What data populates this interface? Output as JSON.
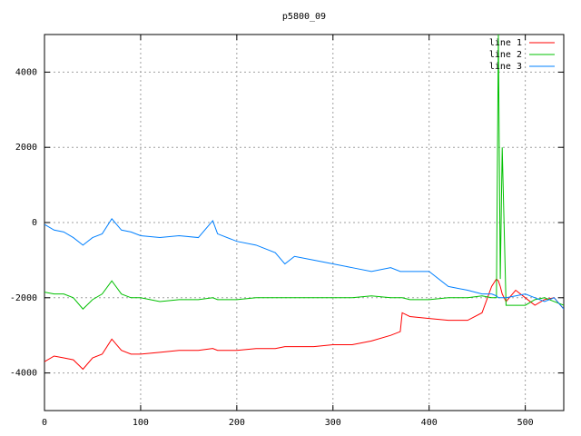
{
  "chart_data": {
    "type": "line",
    "title": "p5800_09",
    "x": [
      0,
      10,
      20,
      30,
      40,
      50,
      60,
      70,
      80,
      90,
      100,
      120,
      140,
      160,
      175,
      180,
      200,
      220,
      240,
      250,
      260,
      280,
      300,
      320,
      340,
      360,
      370,
      372,
      380,
      400,
      420,
      440,
      455,
      465,
      470,
      472,
      474,
      476,
      480,
      490,
      500,
      510,
      520,
      530,
      540
    ],
    "series": [
      {
        "name": "line 1",
        "color": "#ff0000",
        "values": [
          -3700,
          -3550,
          -3600,
          -3650,
          -3900,
          -3600,
          -3500,
          -3100,
          -3400,
          -3500,
          -3500,
          -3450,
          -3400,
          -3400,
          -3350,
          -3400,
          -3400,
          -3350,
          -3350,
          -3300,
          -3300,
          -3300,
          -3250,
          -3250,
          -3150,
          -3000,
          -2900,
          -2400,
          -2500,
          -2550,
          -2600,
          -2600,
          -2400,
          -1700,
          -1500,
          -1550,
          -1700,
          -1900,
          -2100,
          -1800,
          -2000,
          -2200,
          -2050,
          -2000,
          -2300
        ]
      },
      {
        "name": "line 2",
        "color": "#00c000",
        "values": [
          -1850,
          -1900,
          -1900,
          -2000,
          -2300,
          -2050,
          -1900,
          -1550,
          -1900,
          -2000,
          -2000,
          -2100,
          -2050,
          -2050,
          -2000,
          -2050,
          -2050,
          -2000,
          -2000,
          -2000,
          -2000,
          -2000,
          -2000,
          -2000,
          -1950,
          -2000,
          -2000,
          -2000,
          -2050,
          -2050,
          -2000,
          -2000,
          -1950,
          -2000,
          -2000,
          5000,
          -1500,
          2000,
          -2200,
          -2200,
          -2200,
          -2050,
          -2000,
          -2100,
          -2200
        ]
      },
      {
        "name": "line 3",
        "color": "#0080ff",
        "values": [
          -50,
          -200,
          -250,
          -400,
          -600,
          -400,
          -300,
          100,
          -200,
          -250,
          -350,
          -400,
          -350,
          -400,
          50,
          -300,
          -500,
          -600,
          -800,
          -1100,
          -900,
          -1000,
          -1100,
          -1200,
          -1300,
          -1200,
          -1300,
          -1300,
          -1300,
          -1300,
          -1700,
          -1800,
          -1900,
          -1900,
          -1950,
          -2000,
          -2000,
          -2000,
          -2000,
          -1950,
          -1900,
          -2000,
          -2100,
          -2000,
          -2300
        ]
      }
    ],
    "xlim": [
      0,
      540
    ],
    "xticks": [
      0,
      100,
      200,
      300,
      400,
      500
    ],
    "ylim": [
      -5000,
      5000
    ],
    "yticks": [
      -4000,
      -2000,
      0,
      2000,
      4000
    ],
    "grid": true,
    "legend": "top-right"
  }
}
